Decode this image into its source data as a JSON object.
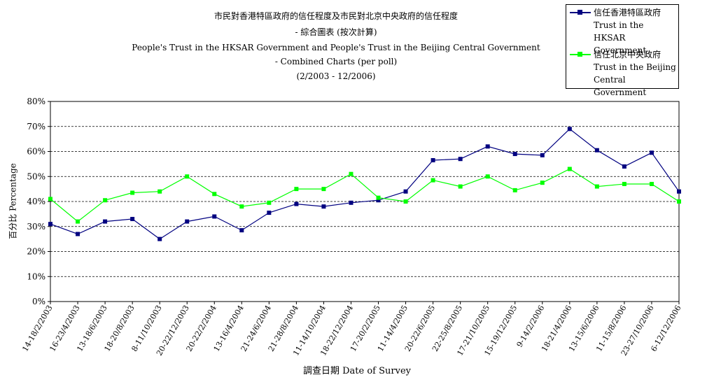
{
  "chart_data": {
    "type": "line",
    "title_lines": [
      "市民對香港特區政府的信任程度及市民對北京中央政府的信任程度",
      "- 綜合圖表 (按次計算)",
      "People's Trust in the HKSAR Government and People's Trust in the Beijing Central Government",
      "- Combined Charts (per poll)",
      "(2/2003 - 12/2006)"
    ],
    "xlabel": "調查日期 Date of Survey",
    "ylabel": "百分比 Percentage",
    "ylim": [
      0,
      80
    ],
    "yticks": [
      "0%",
      "10%",
      "20%",
      "30%",
      "40%",
      "50%",
      "60%",
      "70%",
      "80%"
    ],
    "grid": "horizontal dashed",
    "legend_position": "top-right",
    "categories": [
      "14-18/2/2003",
      "16-23/4/2003",
      "13-18/6/2003",
      "18-20/8/2003",
      "8-11/10/2003",
      "20-22/12/2003",
      "20-22/2/2004",
      "13-16/4/2004",
      "21-24/6/2004",
      "21-28/8/2004",
      "11-14/10/2004",
      "18-22/12/2004",
      "17-20/2/2005",
      "11-14/4/2005",
      "20-22/6/2005",
      "22-25/8/2005",
      "17-21/10/2005",
      "15-19/12/2005",
      "9-14/2/2006",
      "18-21/4/2006",
      "13-15/6/2006",
      "11-15/8/2006",
      "23-27/10/2006",
      "6-12/12/2006"
    ],
    "series": [
      {
        "name_lines": [
          "信任香港特區政府",
          "Trust in the HKSAR",
          "Government"
        ],
        "color": "#000080",
        "marker": "square",
        "values": [
          31,
          27,
          32,
          33,
          25,
          32,
          34,
          28.5,
          35.5,
          39,
          38,
          39.5,
          40.5,
          44,
          56.5,
          57,
          62,
          59,
          58.5,
          69,
          60.5,
          54,
          59.5,
          44
        ]
      },
      {
        "name_lines": [
          "信任北京中央政府",
          "Trust in the Beijing",
          "Central Government"
        ],
        "color": "#00ff00",
        "marker": "square",
        "values": [
          41,
          32,
          40.5,
          43.5,
          44,
          50,
          43,
          38,
          39.5,
          45,
          45,
          51,
          41.5,
          40,
          48.5,
          46,
          50,
          44.5,
          47.5,
          53,
          46,
          47,
          47,
          40
        ]
      }
    ]
  }
}
